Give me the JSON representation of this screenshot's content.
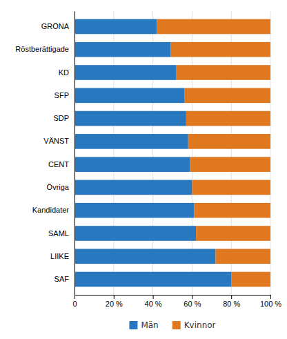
{
  "chart_data": {
    "type": "bar",
    "orientation": "horizontal",
    "stacked": true,
    "categories": [
      "GRÖNA",
      "Röstberättigade",
      "KD",
      "SFP",
      "SDP",
      "VÄNST",
      "CENT",
      "Övriga",
      "Kandidater",
      "SAML",
      "LIIKE",
      "SAF"
    ],
    "series": [
      {
        "name": "Män",
        "color": "#2878c0",
        "values": [
          42,
          49,
          52,
          56,
          57,
          58,
          59,
          60,
          61,
          62,
          72,
          80
        ]
      },
      {
        "name": "Kvinnor",
        "color": "#e07820",
        "values": [
          58,
          51,
          48,
          44,
          43,
          42,
          41,
          40,
          39,
          38,
          28,
          20
        ]
      }
    ],
    "xlim": [
      0,
      100
    ],
    "xticks": [
      0,
      {
        "value": 20,
        "label": "20 %"
      },
      {
        "value": 40,
        "label": "40 %"
      },
      {
        "value": 60,
        "label": "60 %"
      },
      {
        "value": 80,
        "label": "80 %"
      },
      {
        "value": 100,
        "label": "100 %"
      }
    ],
    "grid": true,
    "legend": "bottom"
  }
}
